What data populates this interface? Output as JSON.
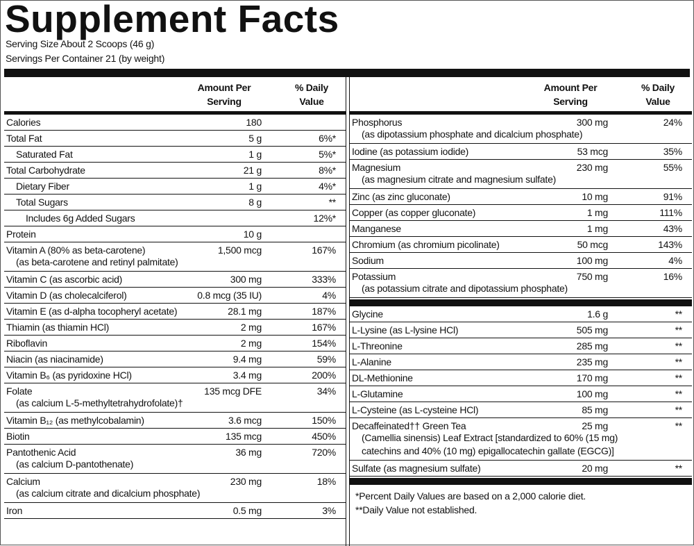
{
  "header": {
    "title": "Supplement Facts",
    "serving_size": "Serving Size About 2 Scoops (46 g)",
    "servings": "Servings Per Container 21 (by weight)"
  },
  "left": {
    "headers": {
      "amount": "Amount Per Serving",
      "dv": "% Daily Value"
    },
    "rows": [
      {
        "name": "Calories",
        "amount": "180"
      },
      {
        "name": "Total Fat",
        "amount": "5 g",
        "dv": "6%*"
      },
      {
        "name": "Saturated Fat",
        "amount": "1 g",
        "dv": "5%*"
      },
      {
        "name": "Total Carbohydrate",
        "amount": "21 g",
        "dv": "8%*"
      },
      {
        "name": "Dietary Fiber",
        "amount": "1 g",
        "dv": "4%*"
      },
      {
        "name": "Total Sugars",
        "amount": "8 g",
        "dv": "**"
      },
      {
        "name": "Includes 6g Added Sugars",
        "dv": "12%*"
      },
      {
        "name": "Protein",
        "amount": "10 g"
      },
      {
        "name": "Vitamin A (80% as beta-carotene)",
        "amount": "1,500 mcg",
        "dv": "167%",
        "sub": [
          "(as beta-carotene and retinyl palmitate)"
        ]
      },
      {
        "name": "Vitamin C (as ascorbic acid)",
        "amount": "300 mg",
        "dv": "333%"
      },
      {
        "name": "Vitamin D (as cholecalciferol)",
        "amount": "0.8 mcg (35 IU)",
        "dv": "4%"
      },
      {
        "name": "Vitamin E (as d-alpha tocopheryl acetate)",
        "amount": "28.1 mg",
        "dv": "187%"
      },
      {
        "name": "Thiamin (as thiamin HCl)",
        "amount": "2 mg",
        "dv": "167%"
      },
      {
        "name": "Riboflavin",
        "amount": "2 mg",
        "dv": "154%"
      },
      {
        "name": "Niacin (as niacinamide)",
        "amount": "9.4 mg",
        "dv": "59%"
      },
      {
        "name": "Vitamin B₆ (as pyridoxine HCl)",
        "amount": "3.4 mg",
        "dv": "200%"
      },
      {
        "name": "Folate",
        "amount": "135 mcg DFE",
        "dv": "34%",
        "sub": [
          "(as calcium L-5-methyltetrahydrofolate)†"
        ]
      },
      {
        "name": "Vitamin B₁₂ (as methylcobalamin)",
        "amount": "3.6 mcg",
        "dv": "150%"
      },
      {
        "name": "Biotin",
        "amount": "135 mcg",
        "dv": "450%"
      },
      {
        "name": "Pantothenic Acid",
        "amount": "36 mg",
        "dv": "720%",
        "sub": [
          "(as calcium D-pantothenate)"
        ]
      },
      {
        "name": "Calcium",
        "amount": "230 mg",
        "dv": "18%",
        "sub": [
          "(as calcium citrate and dicalcium phosphate)"
        ]
      },
      {
        "name": "Iron",
        "amount": "0.5 mg",
        "dv": "3%"
      }
    ]
  },
  "right": {
    "headers": {
      "amount": "Amount Per Serving",
      "dv": "% Daily Value"
    },
    "minerals": [
      {
        "name": "Phosphorus",
        "amount": "300 mg",
        "dv": "24%",
        "sub": [
          "(as dipotassium phosphate and dicalcium phosphate)"
        ]
      },
      {
        "name": "Iodine (as potassium iodide)",
        "amount": "53 mcg",
        "dv": "35%"
      },
      {
        "name": "Magnesium",
        "amount": "230 mg",
        "dv": "55%",
        "sub": [
          "(as magnesium citrate and magnesium sulfate)"
        ]
      },
      {
        "name": "Zinc (as zinc gluconate)",
        "amount": "10 mg",
        "dv": "91%"
      },
      {
        "name": "Copper (as copper gluconate)",
        "amount": "1 mg",
        "dv": "111%"
      },
      {
        "name": "Manganese",
        "amount": "1 mg",
        "dv": "43%"
      },
      {
        "name": "Chromium (as chromium picolinate)",
        "amount": "50 mcg",
        "dv": "143%"
      },
      {
        "name": "Sodium",
        "amount": "100 mg",
        "dv": "4%"
      },
      {
        "name": "Potassium",
        "amount": "750 mg",
        "dv": "16%",
        "sub": [
          "(as potassium citrate and dipotassium phosphate)"
        ]
      }
    ],
    "others": [
      {
        "name": "Glycine",
        "amount": "1.6 g",
        "dv": "**"
      },
      {
        "name": "L-Lysine (as L-lysine HCl)",
        "amount": "505 mg",
        "dv": "**"
      },
      {
        "name": "L-Threonine",
        "amount": "285 mg",
        "dv": "**"
      },
      {
        "name": "L-Alanine",
        "amount": "235 mg",
        "dv": "**"
      },
      {
        "name": "DL-Methionine",
        "amount": "170 mg",
        "dv": "**"
      },
      {
        "name": "L-Glutamine",
        "amount": "100 mg",
        "dv": "**"
      },
      {
        "name": "L-Cysteine (as L-cysteine HCl)",
        "amount": "85 mg",
        "dv": "**"
      },
      {
        "name": "Decaffeinated†† Green Tea",
        "amount": "25 mg",
        "dv": "**",
        "sub": [
          "(Camellia sinensis) Leaf Extract [standardized to 60% (15 mg)",
          "catechins and 40% (10 mg) epigallocatechin gallate (EGCG)]"
        ]
      },
      {
        "name": "Sulfate (as magnesium sulfate)",
        "amount": "20 mg",
        "dv": "**"
      }
    ],
    "footnotes": [
      "*Percent Daily Values are based on a 2,000 calorie diet.",
      "**Daily Value not established."
    ]
  }
}
